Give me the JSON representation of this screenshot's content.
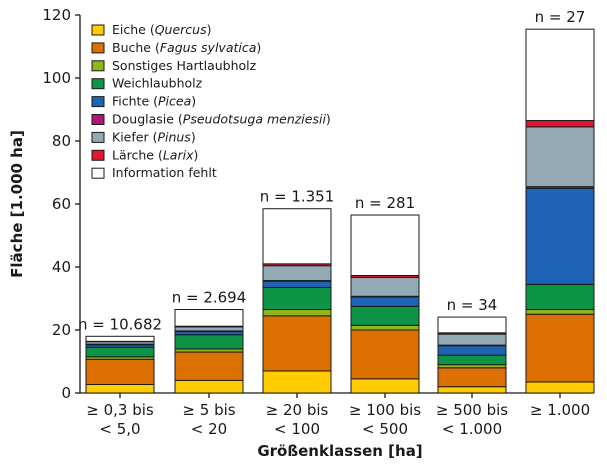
{
  "chart_data": {
    "type": "bar",
    "stacked": true,
    "xlabel": "Größenklassen [ha]",
    "ylabel": "Fläche [1.000 ha]",
    "ylim": [
      0,
      120
    ],
    "yticks": [
      "0",
      "20",
      "40",
      "60",
      "80",
      "100",
      "120"
    ],
    "categories": [
      [
        "≥ 0,3 bis",
        "< 5,0"
      ],
      [
        "≥ 5 bis",
        "< 20"
      ],
      [
        "≥ 20 bis",
        "< 100"
      ],
      [
        "≥ 100 bis",
        "< 500"
      ],
      [
        "≥ 500 bis",
        "< 1.000"
      ],
      [
        "≥ 1.000"
      ]
    ],
    "counts": [
      "n = 10.682",
      "n = 2.694",
      "n = 1.351",
      "n = 281",
      "n = 34",
      "n = 27"
    ],
    "legend_position": "top-left",
    "series": [
      {
        "name": "Eiche",
        "latin": "Quercus",
        "color": "#ffcc00",
        "values": [
          2.7,
          4.0,
          7.0,
          4.5,
          2.0,
          3.5
        ]
      },
      {
        "name": "Buche",
        "latin": "Fagus sylvatica",
        "color": "#dc7000",
        "values": [
          8.0,
          9.0,
          17.5,
          15.5,
          6.0,
          21.5
        ]
      },
      {
        "name": "Sonstiges Hartlaubholz",
        "latin": "",
        "color": "#8fb817",
        "values": [
          0.8,
          1.0,
          2.0,
          1.5,
          1.0,
          1.5
        ]
      },
      {
        "name": "Weichlaubholz",
        "latin": "",
        "color": "#0e9447",
        "values": [
          3.0,
          4.5,
          7.0,
          6.0,
          3.0,
          8.0
        ]
      },
      {
        "name": "Fichte",
        "latin": "Picea",
        "color": "#1e64b4",
        "values": [
          0.8,
          1.0,
          2.0,
          3.0,
          3.0,
          30.5
        ]
      },
      {
        "name": "Douglasie",
        "latin": "Pseudotsuga menziesii",
        "color": "#b4137a",
        "values": [
          0.2,
          0.2,
          0.2,
          0.2,
          0.2,
          0.5
        ]
      },
      {
        "name": "Kiefer",
        "latin": "Pinus",
        "color": "#93a9b4",
        "values": [
          0.8,
          1.3,
          4.7,
          6.0,
          3.5,
          19.0
        ]
      },
      {
        "name": "Lärche",
        "latin": "Larix",
        "color": "#e3172f",
        "values": [
          0.1,
          0.2,
          0.6,
          0.6,
          0.4,
          2.0
        ]
      },
      {
        "name": "Information fehlt",
        "latin": "",
        "color": "#ffffff",
        "values": [
          1.6,
          5.3,
          17.5,
          19.2,
          5.0,
          29.0
        ]
      }
    ]
  }
}
